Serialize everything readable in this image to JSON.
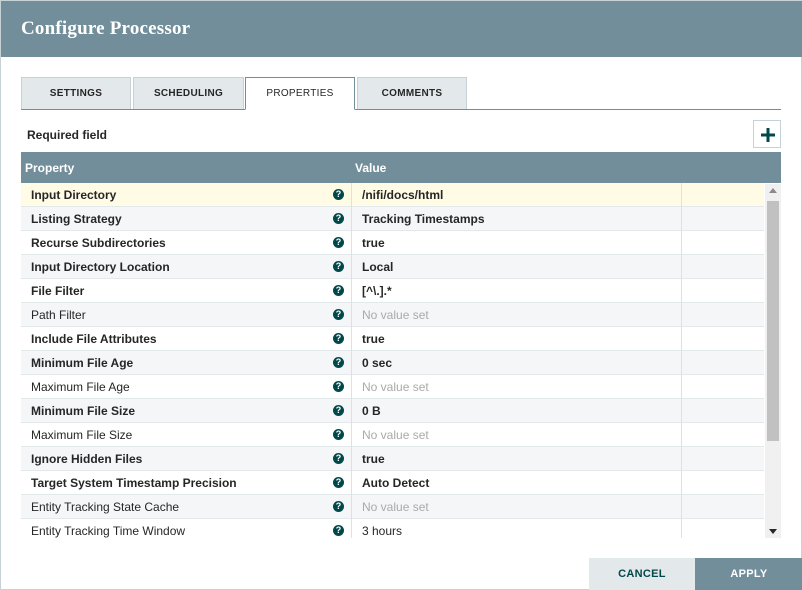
{
  "dialog": {
    "title": "Configure Processor"
  },
  "tabs": [
    {
      "label": "SETTINGS"
    },
    {
      "label": "SCHEDULING"
    },
    {
      "label": "PROPERTIES"
    },
    {
      "label": "COMMENTS"
    }
  ],
  "active_tab": "PROPERTIES",
  "required_label": "Required field",
  "add_button_glyph": "+",
  "table": {
    "headers": {
      "property": "Property",
      "value": "Value"
    },
    "rows": [
      {
        "name": "Input Directory",
        "value": "/nifi/docs/html",
        "required": true,
        "selected": true
      },
      {
        "name": "Listing Strategy",
        "value": "Tracking Timestamps",
        "required": true
      },
      {
        "name": "Recurse Subdirectories",
        "value": "true",
        "required": true
      },
      {
        "name": "Input Directory Location",
        "value": "Local",
        "required": true
      },
      {
        "name": "File Filter",
        "value": "[^\\.].*",
        "required": true
      },
      {
        "name": "Path Filter",
        "value": "No value set",
        "required": false,
        "empty": true
      },
      {
        "name": "Include File Attributes",
        "value": "true",
        "required": true
      },
      {
        "name": "Minimum File Age",
        "value": "0 sec",
        "required": true
      },
      {
        "name": "Maximum File Age",
        "value": "No value set",
        "required": false,
        "empty": true
      },
      {
        "name": "Minimum File Size",
        "value": "0 B",
        "required": true
      },
      {
        "name": "Maximum File Size",
        "value": "No value set",
        "required": false,
        "empty": true
      },
      {
        "name": "Ignore Hidden Files",
        "value": "true",
        "required": true
      },
      {
        "name": "Target System Timestamp Precision",
        "value": "Auto Detect",
        "required": true
      },
      {
        "name": "Entity Tracking State Cache",
        "value": "No value set",
        "required": false,
        "empty": true
      },
      {
        "name": "Entity Tracking Time Window",
        "value": "3 hours",
        "required": false
      }
    ]
  },
  "help_icon_glyph": "?",
  "footer": {
    "cancel_label": "CANCEL",
    "apply_label": "APPLY"
  },
  "colors": {
    "header": "#728e9b",
    "accent": "#004849",
    "selected_row": "#fffbe5"
  }
}
